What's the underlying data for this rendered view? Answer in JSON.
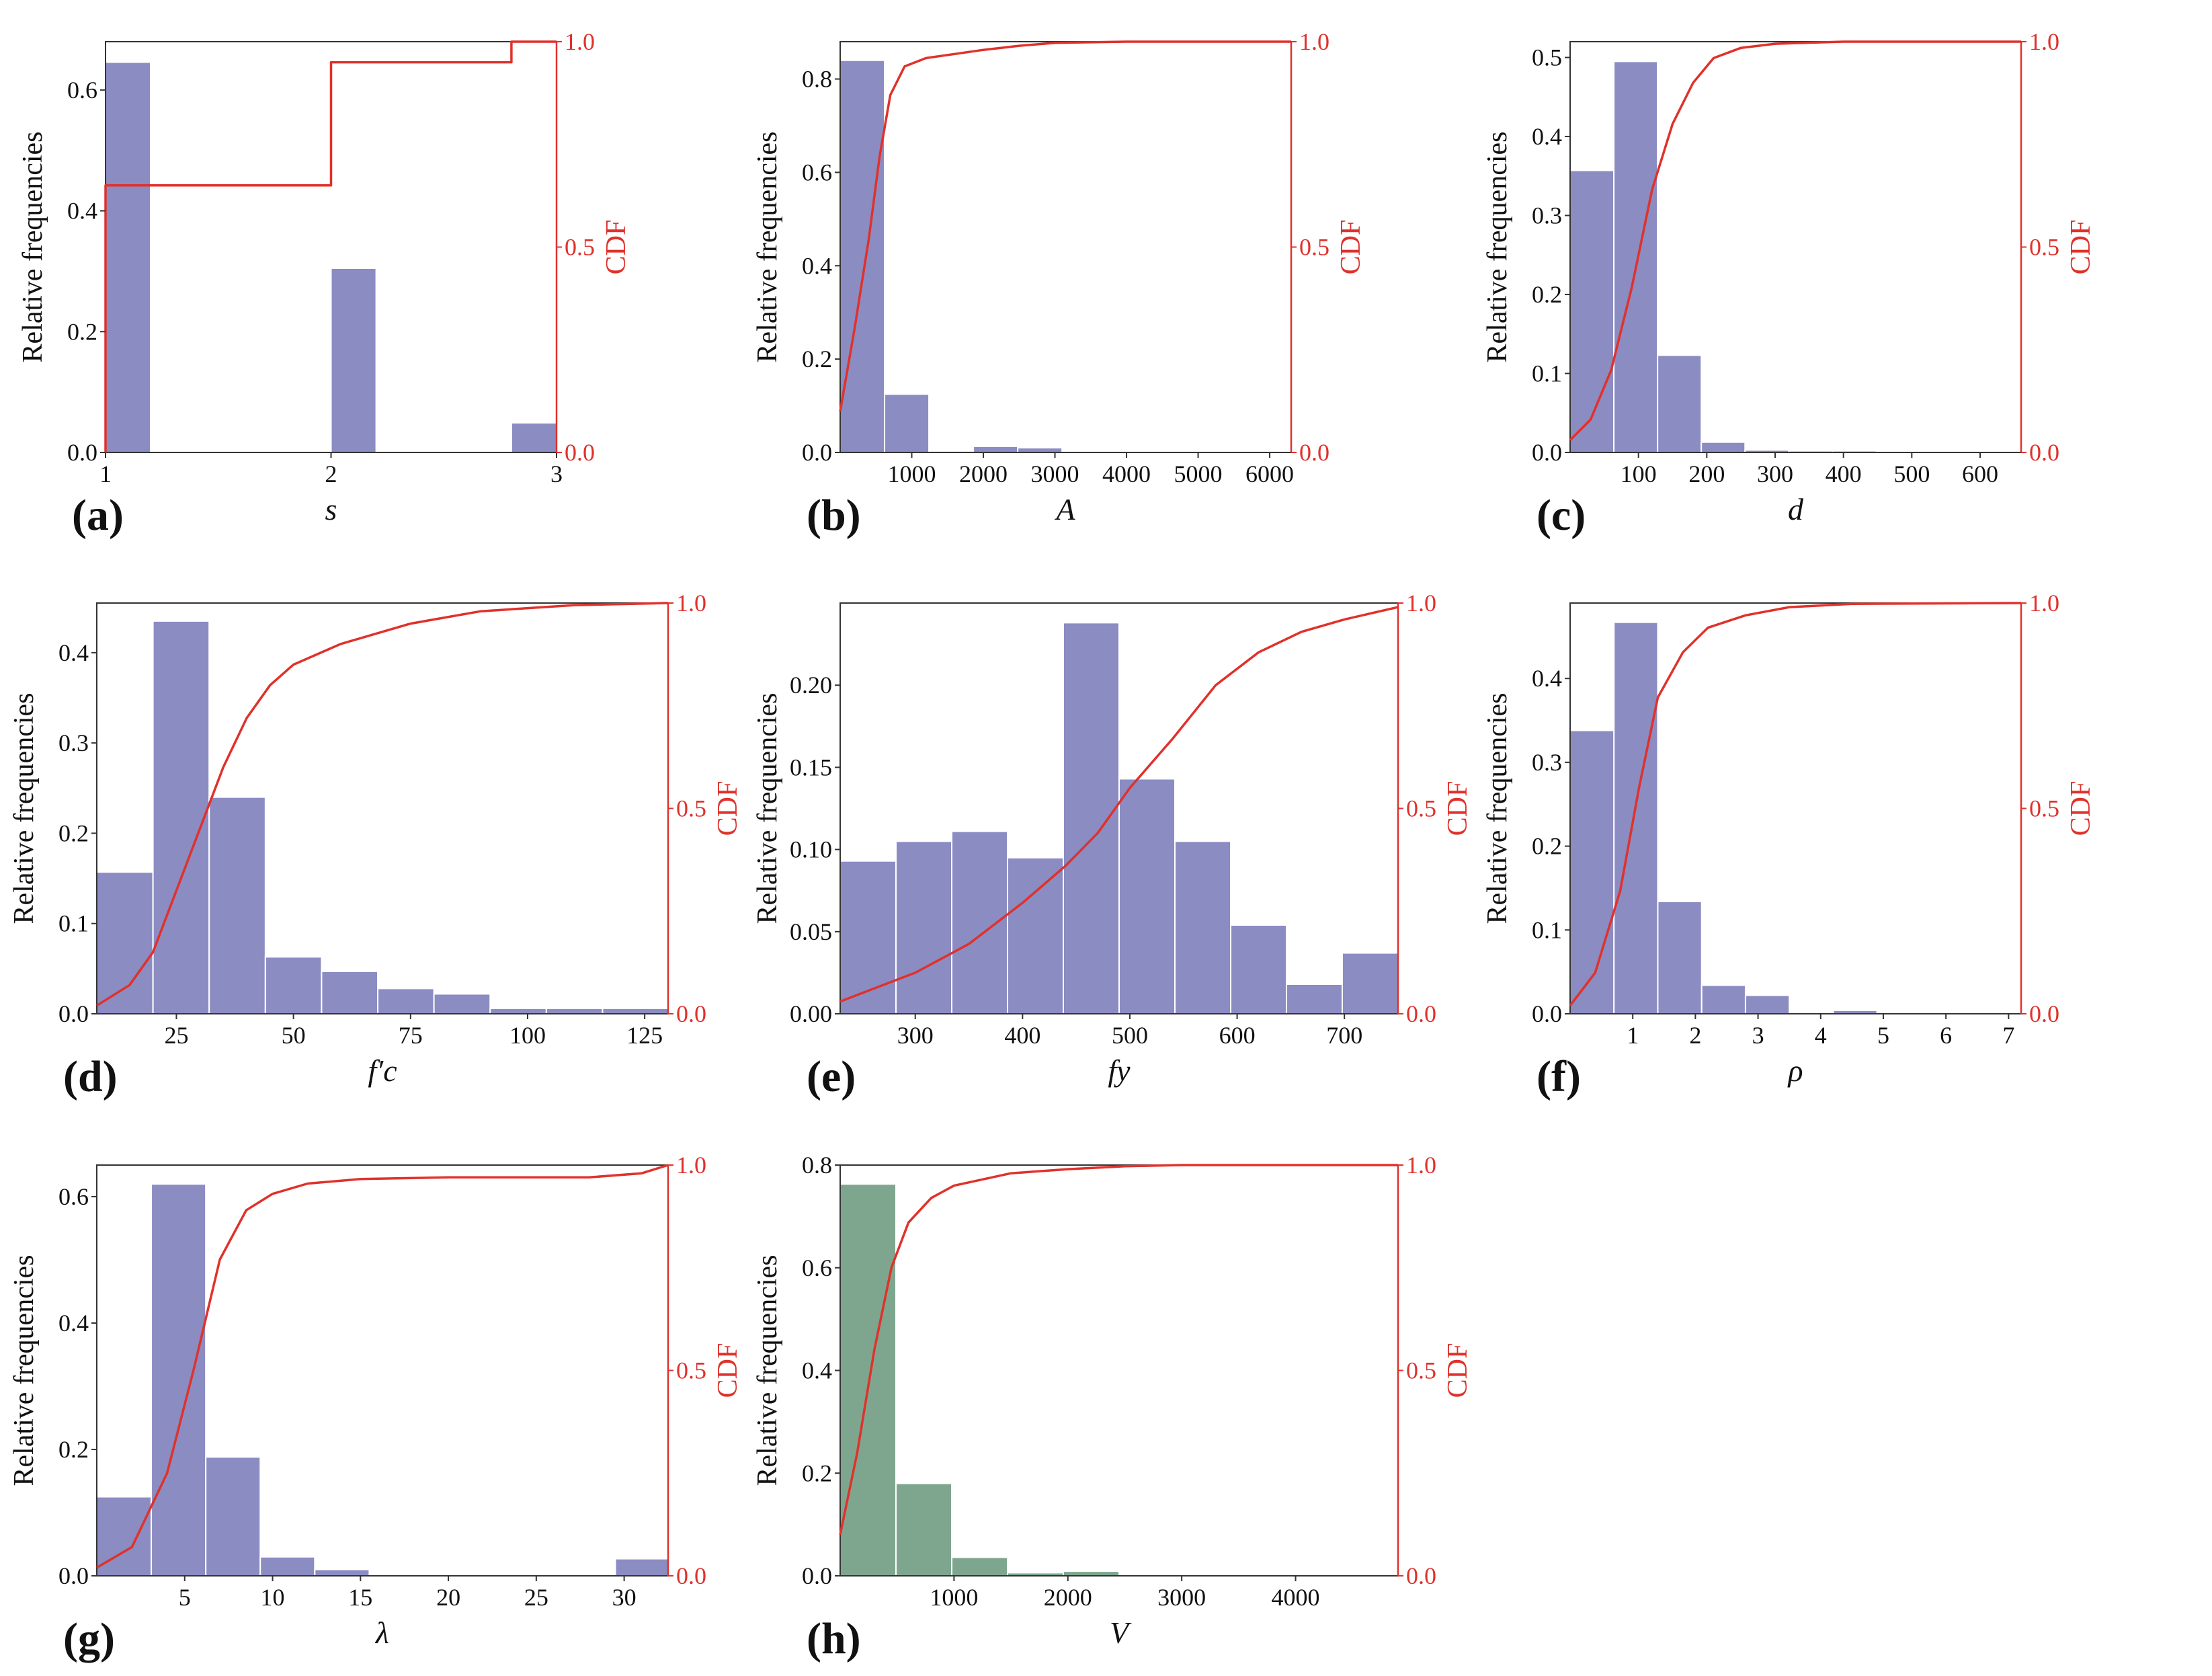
{
  "figure": {
    "y_left_label": "Relative frequencies",
    "y_right_label": "CDF",
    "bar_color": "#8b8cc2",
    "cdf_color": "#e0312b",
    "edge_color": "#ffffff"
  },
  "chart_data": [
    {
      "type": "bar",
      "panel": "(a)",
      "xlabel": "s",
      "ylabel": "Relative frequencies",
      "y2label": "CDF",
      "xlim": [
        1,
        3
      ],
      "ylim": [
        0,
        0.68
      ],
      "y2lim": [
        0,
        1.0
      ],
      "xticks": [
        1,
        2,
        3
      ],
      "yticks": [
        0.0,
        0.2,
        0.4,
        0.6
      ],
      "y2ticks": [
        0.0,
        0.5,
        1.0
      ],
      "xticklabels": [
        "1",
        "2",
        "3"
      ],
      "yticklabels": [
        "0.0",
        "0.2",
        "0.4",
        "0.6"
      ],
      "y2ticklabels": [
        "0.0",
        "0.5",
        "1.0"
      ],
      "bins": [
        [
          1.0,
          1.2,
          0.646
        ],
        [
          2.0,
          2.2,
          0.305
        ],
        [
          2.8,
          3.0,
          0.049
        ]
      ],
      "cdf": [
        [
          1.0,
          0.0
        ],
        [
          1.0,
          0.65
        ],
        [
          2.0,
          0.65
        ],
        [
          2.0,
          0.95
        ],
        [
          2.8,
          0.95
        ],
        [
          2.8,
          1.0
        ],
        [
          3.0,
          1.0
        ]
      ],
      "color": "#8b8cc2"
    },
    {
      "type": "bar",
      "panel": "(b)",
      "xlabel": "A",
      "ylabel": "Relative frequencies",
      "y2label": "CDF",
      "xlim": [
        0,
        6300
      ],
      "ylim": [
        0,
        0.88
      ],
      "y2lim": [
        0,
        1.0
      ],
      "xticks": [
        1000,
        2000,
        3000,
        4000,
        5000,
        6000
      ],
      "yticks": [
        0.0,
        0.2,
        0.4,
        0.6,
        0.8
      ],
      "y2ticks": [
        0.0,
        0.5,
        1.0
      ],
      "xticklabels": [
        "1000",
        "2000",
        "3000",
        "4000",
        "5000",
        "6000"
      ],
      "yticklabels": [
        "0.0",
        "0.2",
        "0.4",
        "0.6",
        "0.8"
      ],
      "y2ticklabels": [
        "0.0",
        "0.5",
        "1.0"
      ],
      "bins": [
        [
          0,
          620,
          0.84
        ],
        [
          620,
          1240,
          0.125
        ],
        [
          1240,
          1860,
          0.003
        ],
        [
          1860,
          2480,
          0.013
        ],
        [
          2480,
          3100,
          0.01
        ],
        [
          3100,
          3720,
          0.002
        ],
        [
          3720,
          4340,
          0.001
        ],
        [
          4340,
          4960,
          0.001
        ],
        [
          4960,
          5580,
          0.001
        ],
        [
          5580,
          6300,
          0.001
        ]
      ],
      "cdf": [
        [
          0,
          0.1
        ],
        [
          200,
          0.3
        ],
        [
          400,
          0.52
        ],
        [
          550,
          0.72
        ],
        [
          700,
          0.87
        ],
        [
          900,
          0.94
        ],
        [
          1200,
          0.96
        ],
        [
          1600,
          0.97
        ],
        [
          2000,
          0.98
        ],
        [
          2500,
          0.99
        ],
        [
          3000,
          0.997
        ],
        [
          4000,
          1.0
        ],
        [
          6300,
          1.0
        ]
      ],
      "color": "#8b8cc2"
    },
    {
      "type": "bar",
      "panel": "(c)",
      "xlabel": "d",
      "ylabel": "Relative frequencies",
      "y2label": "CDF",
      "xlim": [
        0,
        660
      ],
      "ylim": [
        0,
        0.52
      ],
      "y2lim": [
        0,
        1.0
      ],
      "xticks": [
        100,
        200,
        300,
        400,
        500,
        600
      ],
      "yticks": [
        0.0,
        0.1,
        0.2,
        0.3,
        0.4,
        0.5
      ],
      "y2ticks": [
        0.0,
        0.5,
        1.0
      ],
      "xticklabels": [
        "100",
        "200",
        "300",
        "400",
        "500",
        "600"
      ],
      "yticklabels": [
        "0.0",
        "0.1",
        "0.2",
        "0.3",
        "0.4",
        "0.5"
      ],
      "y2ticklabels": [
        "0.0",
        "0.5",
        "1.0"
      ],
      "bins": [
        [
          0,
          64,
          0.357
        ],
        [
          64,
          128,
          0.495
        ],
        [
          128,
          192,
          0.123
        ],
        [
          192,
          256,
          0.013
        ],
        [
          256,
          320,
          0.003
        ],
        [
          320,
          384,
          0.002
        ],
        [
          384,
          448,
          0.002
        ],
        [
          448,
          512,
          0.001
        ],
        [
          512,
          576,
          0.001
        ],
        [
          576,
          660,
          0.001
        ]
      ],
      "cdf": [
        [
          0,
          0.03
        ],
        [
          30,
          0.08
        ],
        [
          60,
          0.2
        ],
        [
          90,
          0.4
        ],
        [
          120,
          0.64
        ],
        [
          150,
          0.8
        ],
        [
          180,
          0.9
        ],
        [
          210,
          0.96
        ],
        [
          250,
          0.985
        ],
        [
          300,
          0.995
        ],
        [
          400,
          1.0
        ],
        [
          660,
          1.0
        ]
      ],
      "color": "#8b8cc2"
    },
    {
      "type": "bar",
      "panel": "(d)",
      "xlabel": "f′c",
      "ylabel": "Relative frequencies",
      "y2label": "CDF",
      "xlim": [
        8,
        130
      ],
      "ylim": [
        0,
        0.455
      ],
      "y2lim": [
        0,
        1.0
      ],
      "xticks": [
        25,
        50,
        75,
        100,
        125
      ],
      "yticks": [
        0.0,
        0.1,
        0.2,
        0.3,
        0.4
      ],
      "y2ticks": [
        0.0,
        0.5,
        1.0
      ],
      "xticklabels": [
        "25",
        "50",
        "75",
        "100",
        "125"
      ],
      "yticklabels": [
        "0.0",
        "0.1",
        "0.2",
        "0.3",
        "0.4"
      ],
      "y2ticklabels": [
        "0.0",
        "0.5",
        "1.0"
      ],
      "bins": [
        [
          8,
          20,
          0.157
        ],
        [
          20,
          32,
          0.435
        ],
        [
          32,
          44,
          0.24
        ],
        [
          44,
          56,
          0.063
        ],
        [
          56,
          68,
          0.047
        ],
        [
          68,
          80,
          0.028
        ],
        [
          80,
          92,
          0.022
        ],
        [
          92,
          104,
          0.006
        ],
        [
          104,
          116,
          0.006
        ],
        [
          116,
          130,
          0.006
        ]
      ],
      "cdf": [
        [
          8,
          0.02
        ],
        [
          15,
          0.07
        ],
        [
          20,
          0.15
        ],
        [
          25,
          0.3
        ],
        [
          30,
          0.45
        ],
        [
          35,
          0.6
        ],
        [
          40,
          0.72
        ],
        [
          45,
          0.8
        ],
        [
          50,
          0.85
        ],
        [
          60,
          0.9
        ],
        [
          75,
          0.95
        ],
        [
          90,
          0.98
        ],
        [
          110,
          0.995
        ],
        [
          130,
          1.0
        ]
      ],
      "color": "#8b8cc2"
    },
    {
      "type": "bar",
      "panel": "(e)",
      "xlabel": "fy",
      "ylabel": "Relative frequencies",
      "y2label": "CDF",
      "xlim": [
        230,
        750
      ],
      "ylim": [
        0,
        0.25
      ],
      "y2lim": [
        0,
        1.0
      ],
      "xticks": [
        300,
        400,
        500,
        600,
        700
      ],
      "yticks": [
        0.0,
        0.05,
        0.1,
        0.15,
        0.2
      ],
      "y2ticks": [
        0.0,
        0.5,
        1.0
      ],
      "xticklabels": [
        "300",
        "400",
        "500",
        "600",
        "700"
      ],
      "yticklabels": [
        "0.00",
        "0.05",
        "0.10",
        "0.15",
        "0.20"
      ],
      "y2ticklabels": [
        "0.0",
        "0.5",
        "1.0"
      ],
      "bins": [
        [
          230,
          282,
          0.093
        ],
        [
          282,
          334,
          0.105
        ],
        [
          334,
          386,
          0.111
        ],
        [
          386,
          438,
          0.095
        ],
        [
          438,
          490,
          0.238
        ],
        [
          490,
          542,
          0.143
        ],
        [
          542,
          594,
          0.105
        ],
        [
          594,
          646,
          0.054
        ],
        [
          646,
          698,
          0.018
        ],
        [
          698,
          750,
          0.037
        ]
      ],
      "cdf": [
        [
          230,
          0.03
        ],
        [
          300,
          0.1
        ],
        [
          350,
          0.17
        ],
        [
          400,
          0.27
        ],
        [
          440,
          0.36
        ],
        [
          470,
          0.44
        ],
        [
          500,
          0.55
        ],
        [
          540,
          0.67
        ],
        [
          580,
          0.8
        ],
        [
          620,
          0.88
        ],
        [
          660,
          0.93
        ],
        [
          700,
          0.96
        ],
        [
          750,
          0.99
        ]
      ],
      "color": "#8b8cc2"
    },
    {
      "type": "bar",
      "panel": "(f)",
      "xlabel": "ρ",
      "ylabel": "Relative frequencies",
      "y2label": "CDF",
      "xlim": [
        0,
        7.2
      ],
      "ylim": [
        0,
        0.49
      ],
      "y2lim": [
        0,
        1.0
      ],
      "xticks": [
        1,
        2,
        3,
        4,
        5,
        6,
        7
      ],
      "yticks": [
        0.0,
        0.1,
        0.2,
        0.3,
        0.4
      ],
      "y2ticks": [
        0.0,
        0.5,
        1.0
      ],
      "xticklabels": [
        "1",
        "2",
        "3",
        "4",
        "5",
        "6",
        "7"
      ],
      "yticklabels": [
        "0.0",
        "0.1",
        "0.2",
        "0.3",
        "0.4"
      ],
      "y2ticklabels": [
        "0.0",
        "0.5",
        "1.0"
      ],
      "bins": [
        [
          0,
          0.7,
          0.338
        ],
        [
          0.7,
          1.4,
          0.467
        ],
        [
          1.4,
          2.1,
          0.134
        ],
        [
          2.1,
          2.8,
          0.034
        ],
        [
          2.8,
          3.5,
          0.022
        ],
        [
          3.5,
          4.2,
          0.001
        ],
        [
          4.2,
          4.9,
          0.004
        ],
        [
          4.9,
          5.6,
          0.001
        ],
        [
          5.6,
          6.3,
          0.001
        ],
        [
          6.3,
          7.2,
          0.001
        ]
      ],
      "cdf": [
        [
          0,
          0.02
        ],
        [
          0.4,
          0.1
        ],
        [
          0.8,
          0.3
        ],
        [
          1.1,
          0.55
        ],
        [
          1.4,
          0.77
        ],
        [
          1.8,
          0.88
        ],
        [
          2.2,
          0.94
        ],
        [
          2.8,
          0.97
        ],
        [
          3.5,
          0.99
        ],
        [
          4.5,
          0.998
        ],
        [
          7.2,
          1.0
        ]
      ],
      "color": "#8b8cc2"
    },
    {
      "type": "bar",
      "panel": "(g)",
      "xlabel": "λ",
      "ylabel": "Relative frequencies",
      "y2label": "CDF",
      "xlim": [
        0,
        32.5
      ],
      "ylim": [
        0,
        0.65
      ],
      "y2lim": [
        0,
        1.0
      ],
      "xticks": [
        5,
        10,
        15,
        20,
        25,
        30
      ],
      "yticks": [
        0.0,
        0.2,
        0.4,
        0.6
      ],
      "y2ticks": [
        0.0,
        0.5,
        1.0
      ],
      "xticklabels": [
        "5",
        "10",
        "15",
        "20",
        "25",
        "30"
      ],
      "yticklabels": [
        "0.0",
        "0.2",
        "0.4",
        "0.6"
      ],
      "y2ticklabels": [
        "0.0",
        "0.5",
        "1.0"
      ],
      "bins": [
        [
          0,
          3.1,
          0.125
        ],
        [
          3.1,
          6.2,
          0.62
        ],
        [
          6.2,
          9.3,
          0.188
        ],
        [
          9.3,
          12.4,
          0.03
        ],
        [
          12.4,
          15.5,
          0.01
        ],
        [
          15.5,
          18.6,
          0.001
        ],
        [
          18.6,
          21.7,
          0.001
        ],
        [
          21.7,
          24.8,
          0.001
        ],
        [
          24.8,
          27.9,
          0.001
        ],
        [
          29.5,
          32.5,
          0.027
        ]
      ],
      "cdf": [
        [
          0,
          0.02
        ],
        [
          2,
          0.07
        ],
        [
          4,
          0.25
        ],
        [
          5.5,
          0.5
        ],
        [
          7,
          0.77
        ],
        [
          8.5,
          0.89
        ],
        [
          10,
          0.93
        ],
        [
          12,
          0.955
        ],
        [
          15,
          0.966
        ],
        [
          20,
          0.97
        ],
        [
          28,
          0.97
        ],
        [
          31,
          0.98
        ],
        [
          32.5,
          1.0
        ]
      ],
      "color": "#8b8cc2"
    },
    {
      "type": "bar",
      "panel": "(h)",
      "xlabel": "V",
      "ylabel": "Relative frequencies",
      "y2label": "CDF",
      "xlim": [
        0,
        4900
      ],
      "ylim": [
        0,
        0.8
      ],
      "y2lim": [
        0,
        1.0
      ],
      "xticks": [
        1000,
        2000,
        3000,
        4000
      ],
      "yticks": [
        0.0,
        0.2,
        0.4,
        0.6,
        0.8
      ],
      "y2ticks": [
        0.0,
        0.5,
        1.0
      ],
      "xticklabels": [
        "1000",
        "2000",
        "3000",
        "4000"
      ],
      "yticklabels": [
        "0.0",
        "0.2",
        "0.4",
        "0.6",
        "0.8"
      ],
      "y2ticklabels": [
        "0.0",
        "0.5",
        "1.0"
      ],
      "bins": [
        [
          0,
          490,
          0.763
        ],
        [
          490,
          980,
          0.18
        ],
        [
          980,
          1470,
          0.036
        ],
        [
          1470,
          1960,
          0.006
        ],
        [
          1960,
          2450,
          0.009
        ],
        [
          2450,
          2940,
          0.001
        ],
        [
          2940,
          3430,
          0.001
        ],
        [
          3430,
          3920,
          0.001
        ],
        [
          3920,
          4410,
          0.001
        ],
        [
          4410,
          4900,
          0.001
        ]
      ],
      "cdf": [
        [
          0,
          0.1
        ],
        [
          150,
          0.3
        ],
        [
          300,
          0.55
        ],
        [
          450,
          0.75
        ],
        [
          600,
          0.86
        ],
        [
          800,
          0.92
        ],
        [
          1000,
          0.95
        ],
        [
          1500,
          0.98
        ],
        [
          2000,
          0.99
        ],
        [
          2500,
          0.997
        ],
        [
          3000,
          1.0
        ],
        [
          4900,
          1.0
        ]
      ],
      "color": "#7ea68f"
    }
  ]
}
